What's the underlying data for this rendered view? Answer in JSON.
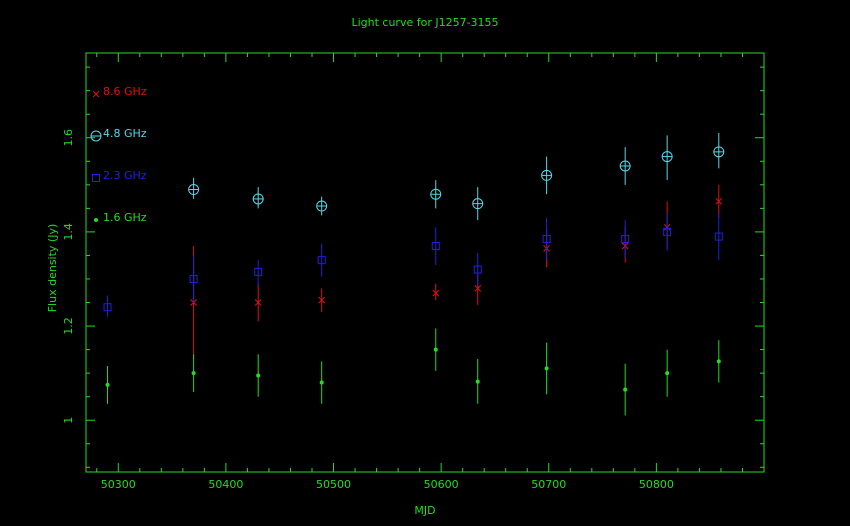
{
  "chart_data": {
    "type": "scatter",
    "title": "Light curve for J1257-3155",
    "xlabel": "MJD",
    "ylabel": "Flux density (Jy)",
    "xlim": [
      50270,
      50900
    ],
    "ylim": [
      0.89,
      1.78
    ],
    "xticks": [
      50300,
      50400,
      50500,
      50600,
      50700,
      50800
    ],
    "yticks": [
      1,
      1.2,
      1.4,
      1.6
    ],
    "ytick_labels": [
      "1",
      "1.2",
      "1.4",
      "1.6"
    ],
    "grid": false,
    "legend": "top-left",
    "colors": {
      "axis": "#22dd22",
      "title": "#22dd22"
    },
    "series": [
      {
        "name": "8.6 GHz",
        "color": "#e01010",
        "marker": "cross",
        "points": [
          {
            "x": 50370,
            "y": 1.25,
            "lo": 1.13,
            "hi": 1.37
          },
          {
            "x": 50430,
            "y": 1.25,
            "lo": 1.21,
            "hi": 1.29
          },
          {
            "x": 50489,
            "y": 1.255,
            "lo": 1.23,
            "hi": 1.28
          },
          {
            "x": 50595,
            "y": 1.27,
            "lo": 1.255,
            "hi": 1.29
          },
          {
            "x": 50634,
            "y": 1.28,
            "lo": 1.245,
            "hi": 1.31
          },
          {
            "x": 50698,
            "y": 1.365,
            "lo": 1.325,
            "hi": 1.405
          },
          {
            "x": 50771,
            "y": 1.37,
            "lo": 1.335,
            "hi": 1.41
          },
          {
            "x": 50810,
            "y": 1.41,
            "lo": 1.365,
            "hi": 1.465
          },
          {
            "x": 50858,
            "y": 1.465,
            "lo": 1.43,
            "hi": 1.5
          }
        ]
      },
      {
        "name": "4.8 GHz",
        "color": "#55d8e8",
        "marker": "circle-plus",
        "points": [
          {
            "x": 50370,
            "y": 1.49,
            "lo": 1.47,
            "hi": 1.515
          },
          {
            "x": 50430,
            "y": 1.47,
            "lo": 1.45,
            "hi": 1.495
          },
          {
            "x": 50489,
            "y": 1.455,
            "lo": 1.435,
            "hi": 1.475
          },
          {
            "x": 50595,
            "y": 1.48,
            "lo": 1.45,
            "hi": 1.51
          },
          {
            "x": 50634,
            "y": 1.46,
            "lo": 1.425,
            "hi": 1.495
          },
          {
            "x": 50698,
            "y": 1.52,
            "lo": 1.48,
            "hi": 1.56
          },
          {
            "x": 50771,
            "y": 1.54,
            "lo": 1.5,
            "hi": 1.58
          },
          {
            "x": 50810,
            "y": 1.56,
            "lo": 1.51,
            "hi": 1.605
          },
          {
            "x": 50858,
            "y": 1.57,
            "lo": 1.535,
            "hi": 1.61
          }
        ]
      },
      {
        "name": "2.3 GHz",
        "color": "#2020e0",
        "marker": "square",
        "points": [
          {
            "x": 50290,
            "y": 1.24,
            "lo": 1.22,
            "hi": 1.265
          },
          {
            "x": 50370,
            "y": 1.3,
            "lo": 1.25,
            "hi": 1.35
          },
          {
            "x": 50430,
            "y": 1.315,
            "lo": 1.285,
            "hi": 1.34
          },
          {
            "x": 50489,
            "y": 1.34,
            "lo": 1.305,
            "hi": 1.375
          },
          {
            "x": 50595,
            "y": 1.37,
            "lo": 1.33,
            "hi": 1.41
          },
          {
            "x": 50634,
            "y": 1.32,
            "lo": 1.285,
            "hi": 1.355
          },
          {
            "x": 50698,
            "y": 1.385,
            "lo": 1.34,
            "hi": 1.43
          },
          {
            "x": 50771,
            "y": 1.385,
            "lo": 1.345,
            "hi": 1.425
          },
          {
            "x": 50810,
            "y": 1.4,
            "lo": 1.36,
            "hi": 1.44
          },
          {
            "x": 50858,
            "y": 1.39,
            "lo": 1.34,
            "hi": 1.44
          }
        ]
      },
      {
        "name": "1.6 GHz",
        "color": "#22dd22",
        "marker": "dot",
        "points": [
          {
            "x": 50290,
            "y": 1.075,
            "lo": 1.035,
            "hi": 1.115
          },
          {
            "x": 50370,
            "y": 1.1,
            "lo": 1.06,
            "hi": 1.14
          },
          {
            "x": 50430,
            "y": 1.095,
            "lo": 1.05,
            "hi": 1.14
          },
          {
            "x": 50489,
            "y": 1.08,
            "lo": 1.035,
            "hi": 1.125
          },
          {
            "x": 50595,
            "y": 1.15,
            "lo": 1.105,
            "hi": 1.195
          },
          {
            "x": 50634,
            "y": 1.082,
            "lo": 1.035,
            "hi": 1.13
          },
          {
            "x": 50698,
            "y": 1.11,
            "lo": 1.055,
            "hi": 1.165
          },
          {
            "x": 50771,
            "y": 1.065,
            "lo": 1.01,
            "hi": 1.12
          },
          {
            "x": 50810,
            "y": 1.1,
            "lo": 1.05,
            "hi": 1.15
          },
          {
            "x": 50858,
            "y": 1.125,
            "lo": 1.08,
            "hi": 1.17
          }
        ]
      }
    ]
  }
}
